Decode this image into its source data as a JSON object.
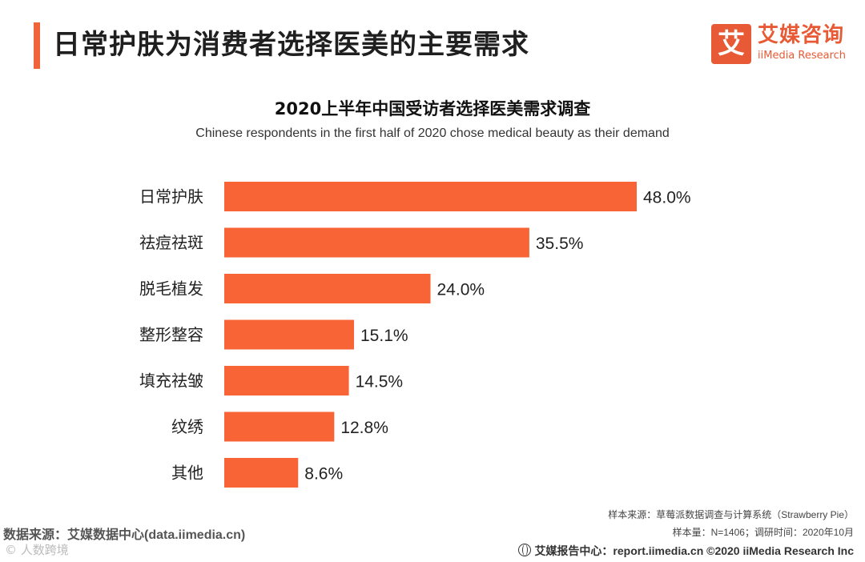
{
  "header": {
    "title": "日常护肤为消费者选择医美的主要需求"
  },
  "logo": {
    "mark": "艾",
    "name_cn": "艾媒咨询",
    "name_en": "iiMedia Research"
  },
  "chart_data": {
    "type": "bar",
    "orientation": "horizontal",
    "title": "2020上半年中国受访者选择医美需求调查",
    "subtitle": "Chinese respondents in the first half of 2020 chose medical beauty as their demand",
    "categories": [
      "日常护肤",
      "祛痘祛斑",
      "脱毛植发",
      "整形整容",
      "填充祛皱",
      "纹绣",
      "其他"
    ],
    "values": [
      48.0,
      35.5,
      24.0,
      15.1,
      14.5,
      12.8,
      8.6
    ],
    "value_labels": [
      "48.0%",
      "35.5%",
      "24.0%",
      "15.1%",
      "14.5%",
      "12.8%",
      "8.6%"
    ],
    "unit": "%",
    "xlim": [
      0,
      48.0
    ],
    "bar_color": "#f86436",
    "xlabel": "",
    "ylabel": ""
  },
  "footer": {
    "sample_source": "样本来源：草莓派数据调查与计算系统（Strawberry Pie）",
    "sample_meta": "样本量：N=1406；调研时间：2020年10月",
    "report_center": "艾媒报告中心：report.iimedia.cn  ©2020  iiMedia Research  Inc",
    "data_source": "数据来源：艾媒数据中心(data.iimedia.cn)",
    "watermark": "© 人数跨境"
  }
}
